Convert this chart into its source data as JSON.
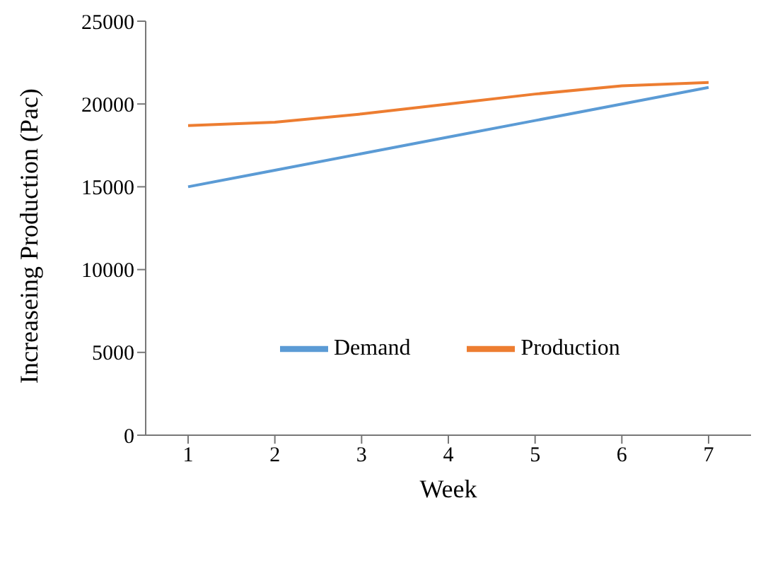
{
  "chart_data": {
    "type": "line",
    "xlabel": "Week",
    "ylabel": "Increaseing Production (Pac)",
    "categories": [
      "1",
      "2",
      "3",
      "4",
      "5",
      "6",
      "7"
    ],
    "series": [
      {
        "name": "Demand",
        "color": "#5b9bd5",
        "values": [
          15000,
          16000,
          17000,
          18000,
          19000,
          20000,
          21000
        ]
      },
      {
        "name": "Production",
        "color": "#ed7d31",
        "values": [
          18700,
          18900,
          19400,
          20000,
          20600,
          21100,
          21300
        ]
      }
    ],
    "ylim": [
      0,
      25000
    ],
    "yticks": [
      0,
      5000,
      10000,
      15000,
      20000,
      25000
    ],
    "grid": false,
    "legend": "center",
    "marker": "none",
    "line_style": "solid"
  }
}
